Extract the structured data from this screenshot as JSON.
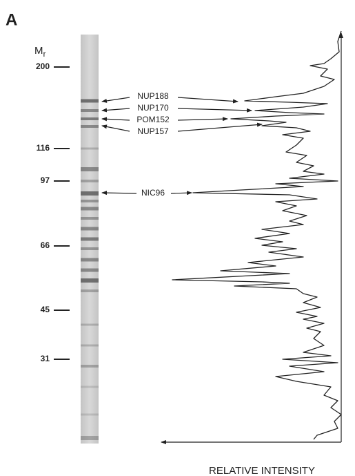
{
  "panel_label": "A",
  "axis_label": {
    "symbol": "M",
    "subscript": "r"
  },
  "markers": [
    "200",
    "116",
    "97",
    "66",
    "45",
    "31"
  ],
  "bands": [
    "NUP188",
    "NUP170",
    "POM152",
    "NUP157",
    "NIC96"
  ],
  "x_axis_label": "RELATIVE INTENSITY"
}
